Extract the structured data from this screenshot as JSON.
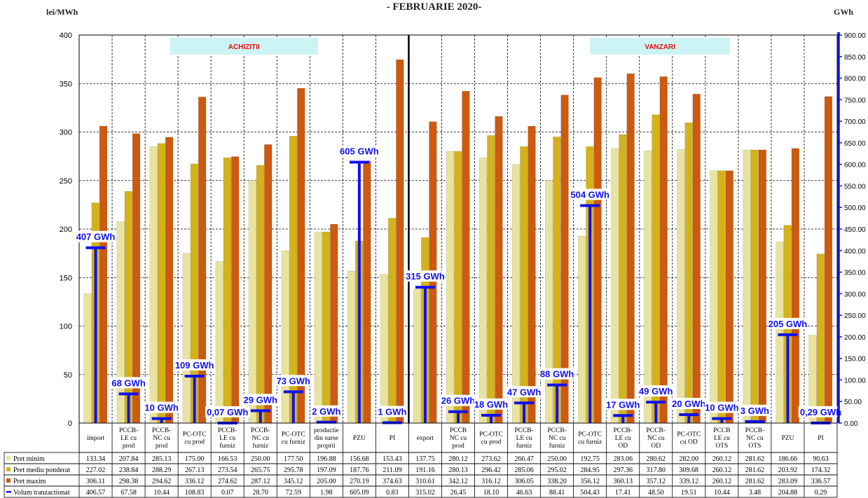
{
  "chart_data": {
    "type": "bar",
    "title": "- FEBRUARIE 2020-",
    "ylabel_left": "lei/MWh",
    "ylabel_right": "GWh",
    "ylim_left": [
      0,
      400
    ],
    "yticks_left": [
      "0",
      "50",
      "100",
      "150",
      "200",
      "250",
      "300",
      "350",
      "400"
    ],
    "ylim_right": [
      0,
      900
    ],
    "yticks_right": [
      "0.00",
      "50.00",
      "100.00",
      "150.00",
      "200.00",
      "250.00",
      "300.00",
      "350.00",
      "400.00",
      "450.00",
      "500.00",
      "550.00",
      "600.00",
      "650.00",
      "700.00",
      "750.00",
      "800.00",
      "850.00",
      "900.00"
    ],
    "grid": true,
    "section_labels": [
      "ACHIZITII",
      "VANZARI"
    ],
    "categories": [
      [
        "import"
      ],
      [
        "PCCB-",
        "LE cu",
        "prod"
      ],
      [
        "PCCB-",
        "NC cu",
        "prod"
      ],
      [
        "PC-OTC",
        "cu prod"
      ],
      [
        "PCCB-",
        "LE cu",
        "furniz"
      ],
      [
        "PCCB-",
        "NC cu",
        "furniz"
      ],
      [
        "PC-OTC",
        "cu furniz"
      ],
      [
        "productie",
        "din surse",
        "proprii"
      ],
      [
        "PZU"
      ],
      [
        "PI"
      ],
      [
        "export"
      ],
      [
        "PCCB",
        "NC cu",
        "prod"
      ],
      [
        "PC-OTC",
        "cu prod"
      ],
      [
        "PCCB-",
        "LE cu",
        "furniz"
      ],
      [
        "PCCB-",
        "NC cu",
        "furniz"
      ],
      [
        "PC-OTC",
        "cu furniz"
      ],
      [
        "PCCB-",
        "LE cu",
        "OD"
      ],
      [
        "PCCB-",
        "NC cu",
        "OD"
      ],
      [
        "PC-OTC",
        "cu OD"
      ],
      [
        "PCCB",
        "LE cu",
        "OTS"
      ],
      [
        "PCCB-",
        "NC cu",
        "OTS"
      ],
      [
        "PZU"
      ],
      [
        "PI"
      ]
    ],
    "series": [
      {
        "name": "Pret minim",
        "color": "#e8e4a0",
        "values": [
          133.34,
          207.84,
          285.13,
          175.0,
          166.53,
          250.0,
          177.5,
          196.88,
          156.68,
          153.43,
          137.75,
          280.12,
          273.62,
          266.47,
          250.0,
          192.75,
          283.06,
          280.62,
          282.0,
          260.12,
          281.62,
          186.66,
          90.63
        ],
        "labels": [
          "133.34",
          "207.84",
          "285.13",
          "175.00",
          "166.53",
          "250.00",
          "177.50",
          "196.88",
          "156.68",
          "153.43",
          "137.75",
          "280.12",
          "273.62",
          "266.47",
          "250.00",
          "192.75",
          "283.06",
          "280.62",
          "282.00",
          "260.12",
          "281.62",
          "186.66",
          "90.63"
        ]
      },
      {
        "name": "Pret mediu ponderat",
        "color": "#d4b21a",
        "values": [
          227.02,
          238.84,
          288.29,
          267.13,
          273.54,
          265.75,
          295.78,
          197.09,
          187.76,
          211.09,
          191.16,
          280.13,
          296.42,
          285.06,
          295.02,
          284.95,
          297.36,
          317.8,
          309.68,
          260.12,
          281.62,
          203.92,
          174.32
        ],
        "labels": [
          "227.02",
          "238.84",
          "288.29",
          "267.13",
          "273.54",
          "265.75",
          "295.78",
          "197.09",
          "187.76",
          "211.09",
          "191.16",
          "280.13",
          "296.42",
          "285.06",
          "295.02",
          "284.95",
          "297.36",
          "317.80",
          "309.68",
          "260.12",
          "281.62",
          "203.92",
          "174.32"
        ]
      },
      {
        "name": "Pret maxim",
        "color": "#cc5a10",
        "values": [
          306.11,
          298.38,
          294.62,
          336.12,
          274.62,
          287.12,
          345.12,
          205.0,
          270.19,
          374.63,
          310.61,
          342.12,
          316.12,
          306.05,
          338.2,
          356.12,
          360.13,
          357.12,
          339.12,
          260.12,
          281.62,
          283.09,
          336.57
        ],
        "labels": [
          "306.11",
          "298.38",
          "294.62",
          "336.12",
          "274.62",
          "287.12",
          "345.12",
          "205.00",
          "270.19",
          "374.63",
          "310.61",
          "342.12",
          "316.12",
          "306.05",
          "338.20",
          "356.12",
          "360.13",
          "357.12",
          "339.12",
          "260.12",
          "281.62",
          "283.09",
          "336.57"
        ]
      },
      {
        "name": "Volum tranzactionat",
        "color": "#1010ee",
        "axis": "right",
        "values": [
          406.57,
          67.58,
          10.44,
          108.83,
          0.07,
          28.7,
          72.59,
          1.98,
          605.09,
          0.83,
          315.02,
          26.45,
          18.1,
          46.63,
          88.41,
          504.43,
          17.41,
          48.5,
          19.51,
          10.44,
          3.48,
          204.88,
          0.29
        ],
        "labels": [
          "406.57",
          "67.58",
          "10.44",
          "108.83",
          "0.07",
          "28.70",
          "72.59",
          "1.98",
          "605.09",
          "0.83",
          "315.02",
          "26.45",
          "18.10",
          "46.63",
          "88.41",
          "504.43",
          "17.41",
          "48.50",
          "19.51",
          "10.44",
          "3.48",
          "204.88",
          "0.29"
        ]
      }
    ],
    "volume_annotations": [
      "407 GWh",
      "68 GWh",
      "10 GWh",
      "109 GWh",
      "0,07 GWh",
      "29 GWh",
      "73 GWh",
      "2 GWh",
      "605 GWh",
      "1 GWh",
      "315 GWh",
      "26 GWh",
      "18 GWh",
      "47 GWh",
      "88 GWh",
      "504 GWh",
      "17 GWh",
      "49 GWh",
      "20 GWh",
      "10 GWh",
      "3 GWh",
      "205 GWh",
      "0,29 GWh"
    ],
    "colors": {
      "minim": "#e8e4a0",
      "mediu": "#d4b21a",
      "maxim": "#cc5a10",
      "volum": "#1010ee",
      "section_box": "#ccf4f4",
      "section_text": "#e01010",
      "divider": "#000000"
    }
  }
}
